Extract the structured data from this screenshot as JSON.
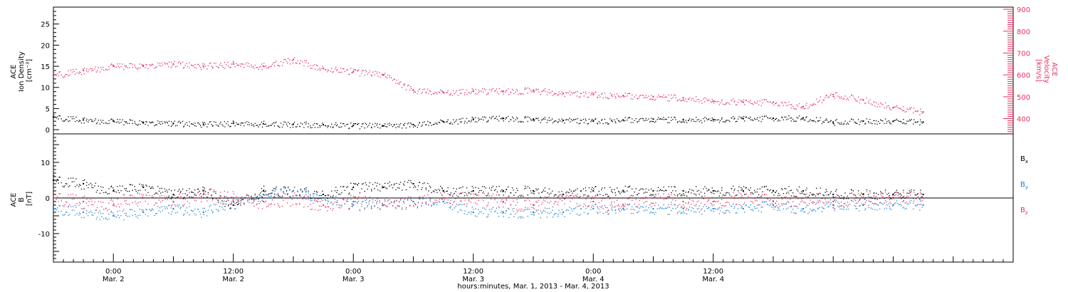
{
  "chart_data": [
    {
      "type": "scatter",
      "panel": "top",
      "ylabel_lines": [
        "ACE",
        "Ion Density",
        "[cm⁻³]"
      ],
      "ylim": [
        -1,
        29
      ],
      "yticks": [
        0,
        5,
        10,
        15,
        20,
        25
      ],
      "ylabel_right_lines": [
        "ACE",
        "Velocity",
        "[km/s]"
      ],
      "ylim_right": [
        330,
        910
      ],
      "yticks_right": [
        400,
        500,
        600,
        700,
        800,
        900
      ],
      "colors": {
        "density": "#000000",
        "velocity": "#e8305f"
      },
      "series": [
        {
          "name": "",
          "axis": "left",
          "color": "#000000",
          "points": [
            [
              0,
              3.0
            ],
            [
              3,
              2.3
            ],
            [
              6,
              2.0
            ],
            [
              9,
              1.6
            ],
            [
              12,
              1.5
            ],
            [
              15,
              1.3
            ],
            [
              18,
              1.5
            ],
            [
              21,
              1.4
            ],
            [
              24,
              1.3
            ],
            [
              27,
              1.2
            ],
            [
              30,
              1.0
            ],
            [
              33,
              0.9
            ],
            [
              36,
              1.2
            ],
            [
              39,
              1.9
            ],
            [
              42,
              2.4
            ],
            [
              45,
              2.7
            ],
            [
              48,
              2.5
            ],
            [
              51,
              2.2
            ],
            [
              54,
              2.0
            ],
            [
              57,
              2.3
            ],
            [
              60,
              2.5
            ],
            [
              63,
              2.4
            ],
            [
              66,
              2.4
            ],
            [
              69,
              2.6
            ],
            [
              72,
              2.7
            ],
            [
              75,
              2.8
            ],
            [
              78,
              1.8
            ],
            [
              81,
              2.0
            ],
            [
              84,
              2.0
            ],
            [
              87,
              1.8
            ]
          ]
        },
        {
          "name": "",
          "axis": "right",
          "color": "#e8305f",
          "points": [
            [
              0,
              600
            ],
            [
              3,
              620
            ],
            [
              6,
              640
            ],
            [
              9,
              640
            ],
            [
              12,
              650
            ],
            [
              15,
              640
            ],
            [
              18,
              650
            ],
            [
              21,
              640
            ],
            [
              24,
              670
            ],
            [
              27,
              630
            ],
            [
              30,
              615
            ],
            [
              33,
              600
            ],
            [
              36,
              530
            ],
            [
              39,
              520
            ],
            [
              42,
              525
            ],
            [
              45,
              525
            ],
            [
              48,
              530
            ],
            [
              51,
              515
            ],
            [
              54,
              510
            ],
            [
              57,
              505
            ],
            [
              60,
              500
            ],
            [
              63,
              495
            ],
            [
              66,
              480
            ],
            [
              69,
              475
            ],
            [
              72,
              475
            ],
            [
              75,
              455
            ],
            [
              78,
              510
            ],
            [
              81,
              485
            ],
            [
              84,
              450
            ],
            [
              87,
              430
            ]
          ]
        }
      ]
    },
    {
      "type": "scatter",
      "panel": "bottom",
      "ylabel_lines": [
        "ACE",
        "B",
        "[nT]"
      ],
      "ylim": [
        -18,
        18
      ],
      "yticks": [
        -10,
        0,
        10
      ],
      "zero_line": true,
      "xlim": [
        0,
        96
      ],
      "xticks": [
        {
          "x": 6,
          "label": "0:00",
          "sub": "Mar. 2"
        },
        {
          "x": 18,
          "label": "12:00",
          "sub": "Mar. 2"
        },
        {
          "x": 30,
          "label": "0:00",
          "sub": "Mar. 3"
        },
        {
          "x": 42,
          "label": "12:00",
          "sub": "Mar. 3"
        },
        {
          "x": 54,
          "label": "0:00",
          "sub": "Mar. 4"
        },
        {
          "x": 66,
          "label": "12:00",
          "sub": "Mar. 4"
        }
      ],
      "xlabel": "hours:minutes, Mar.  1, 2013 - Mar.  4, 2013",
      "legend": [
        {
          "base": "B",
          "sub": "x",
          "color": "#000000"
        },
        {
          "base": "B",
          "sub": "y",
          "color": "#1a80d8"
        },
        {
          "base": "B",
          "sub": "z",
          "color": "#e8305f"
        }
      ],
      "series": [
        {
          "name": "Bx",
          "color": "#000000",
          "points": [
            [
              0,
              5
            ],
            [
              3,
              4
            ],
            [
              6,
              2
            ],
            [
              9,
              3
            ],
            [
              12,
              1
            ],
            [
              15,
              2
            ],
            [
              18,
              -2
            ],
            [
              21,
              2
            ],
            [
              24,
              2
            ],
            [
              27,
              1
            ],
            [
              30,
              3
            ],
            [
              33,
              3
            ],
            [
              36,
              4
            ],
            [
              39,
              2
            ],
            [
              42,
              2
            ],
            [
              45,
              2
            ],
            [
              48,
              2
            ],
            [
              51,
              1
            ],
            [
              54,
              2
            ],
            [
              57,
              2
            ],
            [
              60,
              2
            ],
            [
              63,
              2
            ],
            [
              66,
              2
            ],
            [
              69,
              2
            ],
            [
              72,
              2
            ],
            [
              75,
              2
            ],
            [
              78,
              1
            ],
            [
              81,
              1
            ],
            [
              84,
              1
            ],
            [
              87,
              1
            ]
          ]
        },
        {
          "name": "By",
          "color": "#1a80d8",
          "points": [
            [
              0,
              -3
            ],
            [
              3,
              -4
            ],
            [
              6,
              -5
            ],
            [
              9,
              -4
            ],
            [
              12,
              -3
            ],
            [
              15,
              -4
            ],
            [
              18,
              -1
            ],
            [
              21,
              1
            ],
            [
              24,
              2
            ],
            [
              27,
              0
            ],
            [
              30,
              -2
            ],
            [
              33,
              -2
            ],
            [
              36,
              -1
            ],
            [
              39,
              -1
            ],
            [
              42,
              -4
            ],
            [
              45,
              -4
            ],
            [
              48,
              -4
            ],
            [
              51,
              -4
            ],
            [
              54,
              -3
            ],
            [
              57,
              -3
            ],
            [
              60,
              -3
            ],
            [
              63,
              -3
            ],
            [
              66,
              -3
            ],
            [
              69,
              -3
            ],
            [
              72,
              -2
            ],
            [
              75,
              -3
            ],
            [
              78,
              -2
            ],
            [
              81,
              -2
            ],
            [
              84,
              -2
            ],
            [
              87,
              -2
            ]
          ]
        },
        {
          "name": "Bz",
          "color": "#e8305f",
          "points": [
            [
              0,
              0
            ],
            [
              3,
              -1
            ],
            [
              6,
              -2
            ],
            [
              9,
              0
            ],
            [
              12,
              -1
            ],
            [
              15,
              1
            ],
            [
              18,
              0
            ],
            [
              21,
              -1
            ],
            [
              24,
              0
            ],
            [
              27,
              -2
            ],
            [
              30,
              -1
            ],
            [
              33,
              -2
            ],
            [
              36,
              -1
            ],
            [
              39,
              0
            ],
            [
              42,
              0
            ],
            [
              45,
              -1
            ],
            [
              48,
              -2
            ],
            [
              51,
              0
            ],
            [
              54,
              -1
            ],
            [
              57,
              -2
            ],
            [
              60,
              0
            ],
            [
              63,
              -1
            ],
            [
              66,
              -1
            ],
            [
              69,
              0
            ],
            [
              72,
              -1
            ],
            [
              75,
              0
            ],
            [
              78,
              -1
            ],
            [
              81,
              0
            ],
            [
              84,
              0
            ],
            [
              87,
              0
            ]
          ]
        }
      ]
    }
  ]
}
